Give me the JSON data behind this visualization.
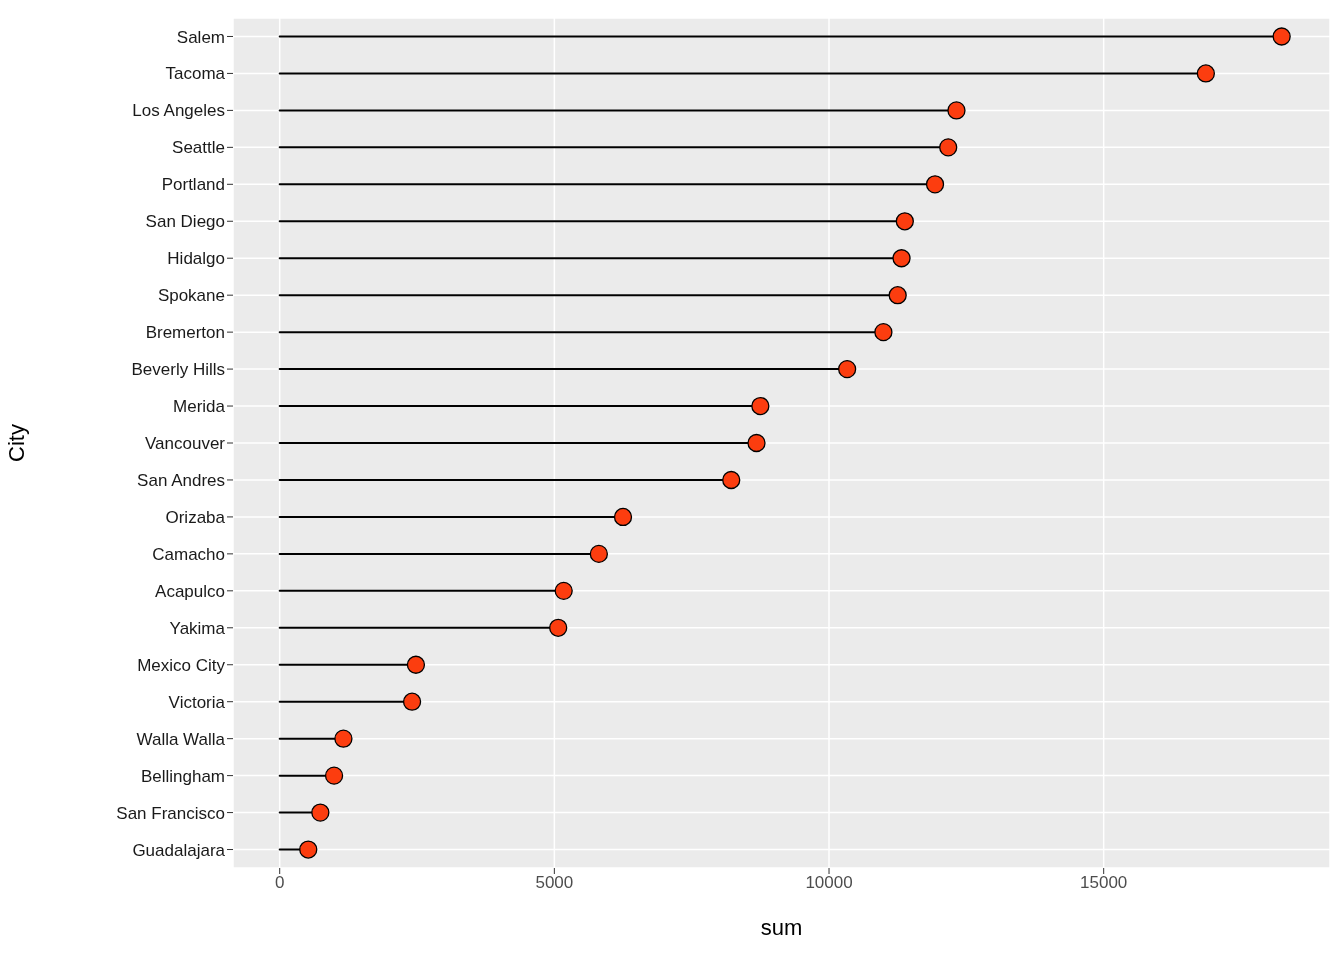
{
  "chart_data": {
    "type": "lollipop",
    "orientation": "horizontal",
    "xlabel": "sum",
    "ylabel": "City",
    "categories": [
      "Salem",
      "Tacoma",
      "Los Angeles",
      "Seattle",
      "Portland",
      "San Diego",
      "Hidalgo",
      "Spokane",
      "Bremerton",
      "Beverly Hills",
      "Merida",
      "Vancouver",
      "San Andres",
      "Orizaba",
      "Camacho",
      "Acapulco",
      "Yakima",
      "Mexico City",
      "Victoria",
      "Walla Walla",
      "Bellingham",
      "San Francisco",
      "Guadalajara"
    ],
    "values": [
      18240,
      16860,
      12320,
      12170,
      11930,
      11380,
      11320,
      11250,
      10990,
      10330,
      8750,
      8680,
      8220,
      6250,
      5810,
      5170,
      5070,
      2480,
      2410,
      1160,
      990,
      740,
      520
    ],
    "color": "#fc3d0f",
    "xlim": [
      -850,
      19120
    ],
    "xticks": [
      0,
      5000,
      10000,
      15000
    ],
    "grid": true,
    "marker": "circle"
  }
}
